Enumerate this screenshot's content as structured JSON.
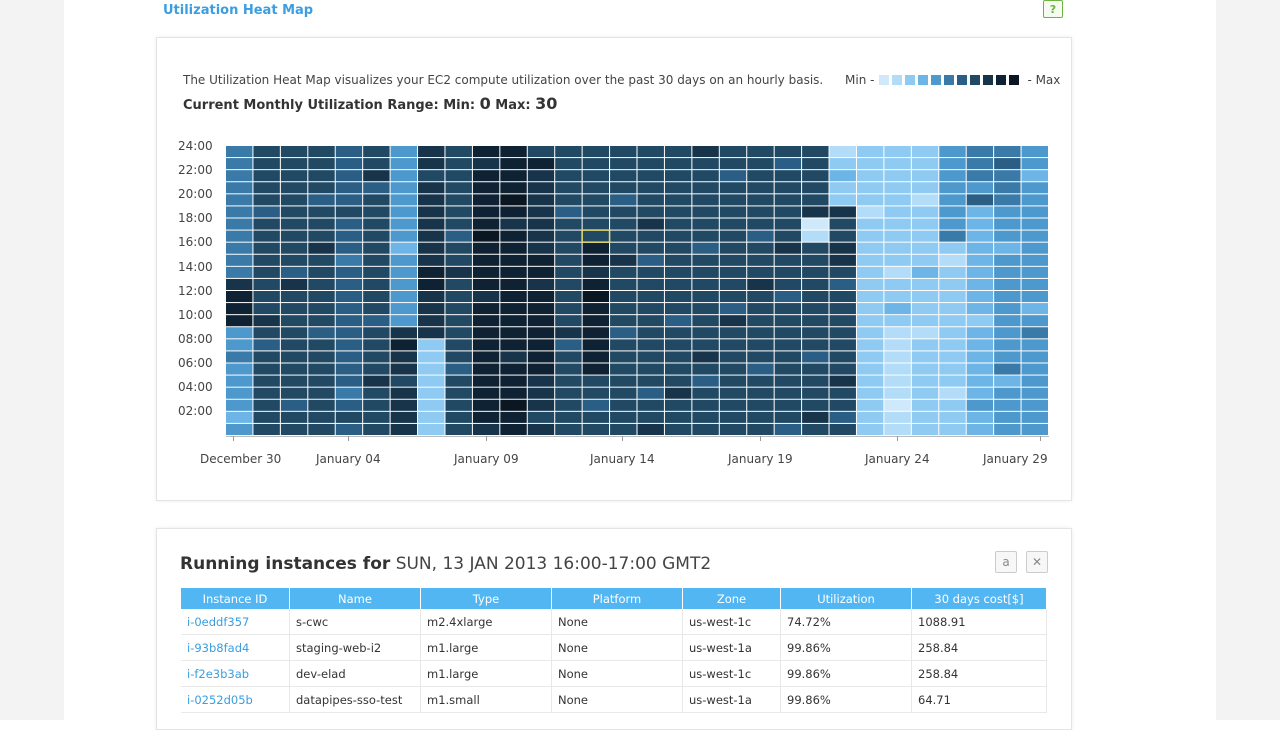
{
  "header": {
    "title": "Utilization Heat Map",
    "help_label": "?"
  },
  "heatmap": {
    "description": "The Utilization Heat Map visualizes your EC2 compute utilization over the past 30 days on an hourly basis.",
    "range_label": "Current Monthly Utilization Range: Min:",
    "min_value": "0",
    "max_label": "Max:",
    "max_value": "30",
    "legend_min": "Min -",
    "legend_max": "- Max",
    "legend_colors": [
      "#cfe9fb",
      "#b2dcf8",
      "#8fcaf2",
      "#6cb5e6",
      "#4d98cc",
      "#3a7aa8",
      "#2b5e84",
      "#214964",
      "#17344a",
      "#0e2233",
      "#0a1722"
    ],
    "y_ticks": [
      "24:00",
      "22:00",
      "20:00",
      "18:00",
      "16:00",
      "14:00",
      "12:00",
      "10:00",
      "08:00",
      "06:00",
      "04:00",
      "02:00"
    ],
    "x_ticks": [
      "December 30",
      "January 04",
      "January 09",
      "January 14",
      "January 19",
      "January 24",
      "January 29"
    ],
    "selected_cell": {
      "day_index": 13,
      "hour": 16
    }
  },
  "instances": {
    "title_bold": "Running instances for",
    "title_date": "SUN, 13 JAN 2013 16:00-17:00 GMT2",
    "columns": [
      "Instance ID",
      "Name",
      "Type",
      "Platform",
      "Zone",
      "Utilization",
      "30 days cost[$]"
    ],
    "rows": [
      [
        "i-0eddf357",
        "s-cwc",
        "m2.4xlarge",
        "None",
        "us-west-1c",
        "74.72%",
        "1088.91"
      ],
      [
        "i-93b8fad4",
        "staging-web-i2",
        "m1.large",
        "None",
        "us-west-1a",
        "99.86%",
        "258.84"
      ],
      [
        "i-f2e3b3ab",
        "dev-elad",
        "m1.large",
        "None",
        "us-west-1c",
        "99.86%",
        "258.84"
      ],
      [
        "i-0252d05b",
        "datapipes-sso-test",
        "m1.small",
        "None",
        "us-west-1a",
        "99.86%",
        "64.71"
      ]
    ]
  }
}
